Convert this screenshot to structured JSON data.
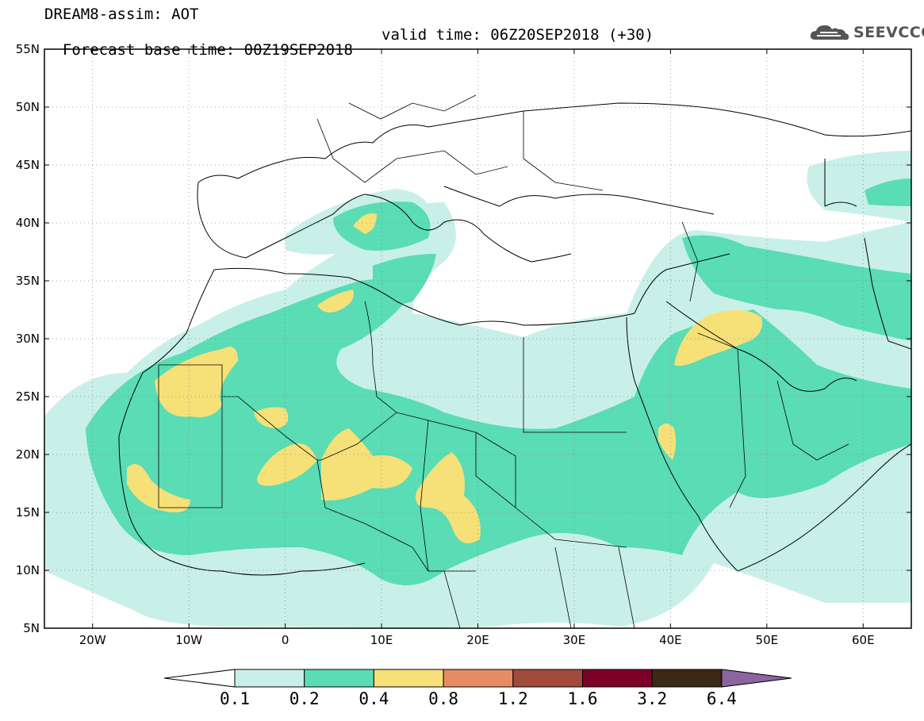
{
  "header": {
    "title_line1": "DREAM8-assim: AOT",
    "base_time": "Forecast base time: 00Z19SEP2018",
    "valid_time": "valid time: 06Z20SEP2018 (+30)"
  },
  "logo": {
    "text": "SEEVCCC",
    "icon": "cloud-logo-icon"
  },
  "map": {
    "lon_labels": [
      "20W",
      "10W",
      "0",
      "10E",
      "20E",
      "30E",
      "40E",
      "50E",
      "60E"
    ],
    "lat_labels": [
      "55N",
      "50N",
      "45N",
      "40N",
      "35N",
      "30N",
      "25N",
      "20N",
      "15N",
      "10N",
      "5N"
    ]
  },
  "colorbar": {
    "labels": [
      "0.1",
      "0.2",
      "0.4",
      "0.8",
      "1.2",
      "1.6",
      "3.2",
      "6.4"
    ],
    "colors": [
      "#ffffff",
      "#c8f0e8",
      "#5adcb4",
      "#f5e178",
      "#e68c64",
      "#a04b3c",
      "#7d0028",
      "#3c2814",
      "#8c64a0"
    ]
  },
  "colors": {
    "aot_01_02": "#c8f0e8",
    "aot_02_04": "#5adcb4",
    "aot_04_08": "#f5e178"
  }
}
